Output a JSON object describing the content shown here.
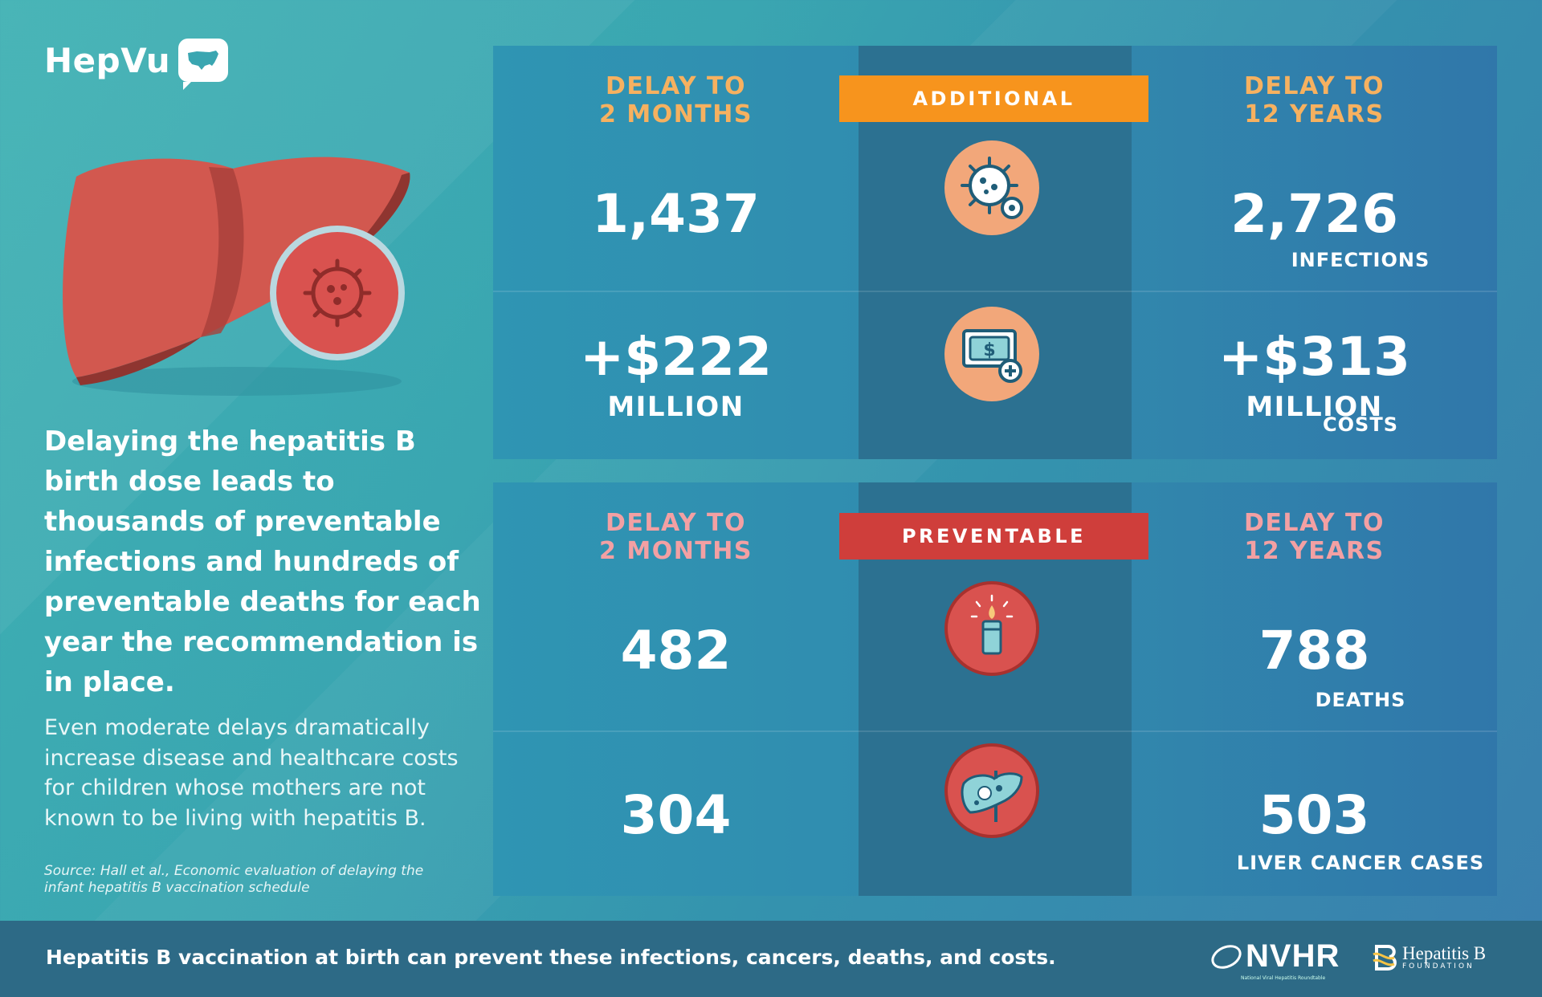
{
  "brand": {
    "name": "HepVu"
  },
  "headline": "Delaying the hepatitis B birth dose leads to thousands of preventable infections and hundreds of preventable deaths for each year the recommendation is in place.",
  "subcopy": "Even moderate delays dramatically increase disease and healthcare costs for children whose mothers are not known to be living with hepatitis B.",
  "source": "Source: Hall et al., Economic evaluation of delaying the infant hepatitis B vaccination schedule",
  "top_panel": {
    "delay_left": "DELAY TO 2 MONTHS",
    "delay_right": "DELAY TO 12 YEARS",
    "banner": "ADDITIONAL",
    "rows": [
      {
        "label": "INFECTIONS",
        "icon": "virus-icon",
        "left_value": "1,437",
        "right_value": "2,726"
      },
      {
        "label": "COSTS",
        "icon": "money-icon",
        "left_value": "+$222",
        "left_unit": "MILLION",
        "right_value": "+$313",
        "right_unit": "MILLION"
      }
    ]
  },
  "bottom_panel": {
    "delay_left": "DELAY TO 2 MONTHS",
    "delay_right": "DELAY TO 12 YEARS",
    "banner": "PREVENTABLE",
    "rows": [
      {
        "label": "DEATHS",
        "icon": "candle-icon",
        "left_value": "482",
        "right_value": "788"
      },
      {
        "label": "LIVER CANCER CASES",
        "icon": "liver-icon",
        "left_value": "304",
        "right_value": "503"
      }
    ]
  },
  "footer": {
    "text": "Hepatitis B vaccination at birth can prevent these infections, cancers, deaths, and costs.",
    "nvhr": "NVHR",
    "nvhr_sub": "National Viral Hepatitis Roundtable",
    "hbf_name": "Hepatitis B",
    "hbf_sub": "FOUNDATION"
  },
  "colors": {
    "orange": "#f7941d",
    "red": "#cf3e3b",
    "liver": "#d2584f",
    "center_column": "#2c7191"
  }
}
